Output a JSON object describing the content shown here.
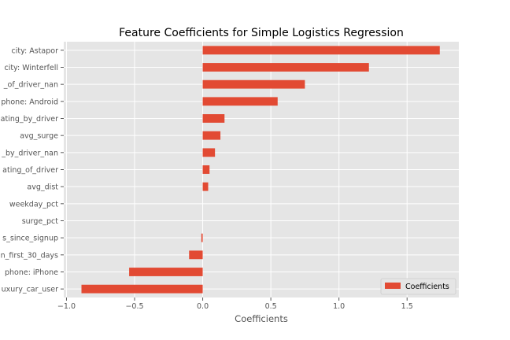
{
  "chart_data": {
    "type": "bar",
    "orientation": "horizontal",
    "title": "Feature Coefficients for Simple Logistics Regression",
    "xlabel": "Coefficients",
    "ylabel": "",
    "xlim": [
      -1.02,
      1.88
    ],
    "xticks": [
      -1.0,
      -0.5,
      0.0,
      0.5,
      1.0,
      1.5
    ],
    "xtick_labels": [
      "−1.0",
      "−0.5",
      "0.0",
      "0.5",
      "1.0",
      "1.5"
    ],
    "grid": true,
    "legend_position": "lower-right",
    "categories": [
      "city: Astapor",
      "city: Winterfell",
      "_of_driver_nan",
      "phone: Android",
      "ating_by_driver",
      "avg_surge",
      "_by_driver_nan",
      "ating_of_driver",
      "avg_dist",
      "weekday_pct",
      "surge_pct",
      "s_since_signup",
      "n_first_30_days",
      "phone: iPhone",
      "uxury_car_user"
    ],
    "series": [
      {
        "name": "Coefficients",
        "color": "#e24a33",
        "values": [
          1.74,
          1.22,
          0.75,
          0.55,
          0.16,
          0.13,
          0.09,
          0.05,
          0.04,
          0.0,
          0.0,
          -0.01,
          -0.1,
          -0.54,
          -0.89
        ]
      }
    ],
    "colors": {
      "background": "#e5e5e5",
      "grid": "#ffffff",
      "bar": "#e24a33"
    }
  }
}
